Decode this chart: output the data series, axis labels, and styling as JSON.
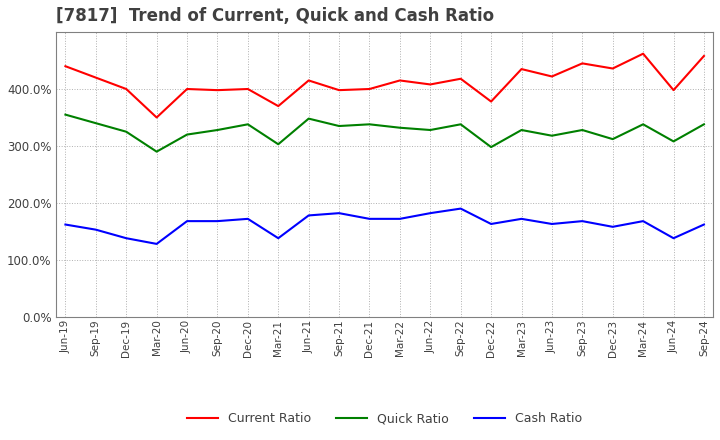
{
  "title": "[7817]  Trend of Current, Quick and Cash Ratio",
  "x_labels": [
    "Jun-19",
    "Sep-19",
    "Dec-19",
    "Mar-20",
    "Jun-20",
    "Sep-20",
    "Dec-20",
    "Mar-21",
    "Jun-21",
    "Sep-21",
    "Dec-21",
    "Mar-22",
    "Jun-22",
    "Sep-22",
    "Dec-22",
    "Mar-23",
    "Jun-23",
    "Sep-23",
    "Dec-23",
    "Mar-24",
    "Jun-24",
    "Sep-24"
  ],
  "current_ratio": [
    440,
    420,
    400,
    350,
    400,
    398,
    400,
    370,
    415,
    398,
    400,
    415,
    408,
    418,
    378,
    435,
    422,
    445,
    436,
    462,
    398,
    458
  ],
  "quick_ratio": [
    355,
    340,
    325,
    290,
    320,
    328,
    338,
    303,
    348,
    335,
    338,
    332,
    328,
    338,
    298,
    328,
    318,
    328,
    312,
    338,
    308,
    338
  ],
  "cash_ratio": [
    162,
    153,
    138,
    128,
    168,
    168,
    172,
    138,
    178,
    182,
    172,
    172,
    182,
    190,
    163,
    172,
    163,
    168,
    158,
    168,
    138,
    162
  ],
  "ylim": [
    0,
    500
  ],
  "yticks": [
    0,
    100,
    200,
    300,
    400
  ],
  "current_color": "#ff0000",
  "quick_color": "#008000",
  "cash_color": "#0000ff",
  "background_color": "#ffffff",
  "grid_color": "#b0b0b0",
  "title_color": "#404040",
  "title_fontsize": 12,
  "legend_labels": [
    "Current Ratio",
    "Quick Ratio",
    "Cash Ratio"
  ]
}
